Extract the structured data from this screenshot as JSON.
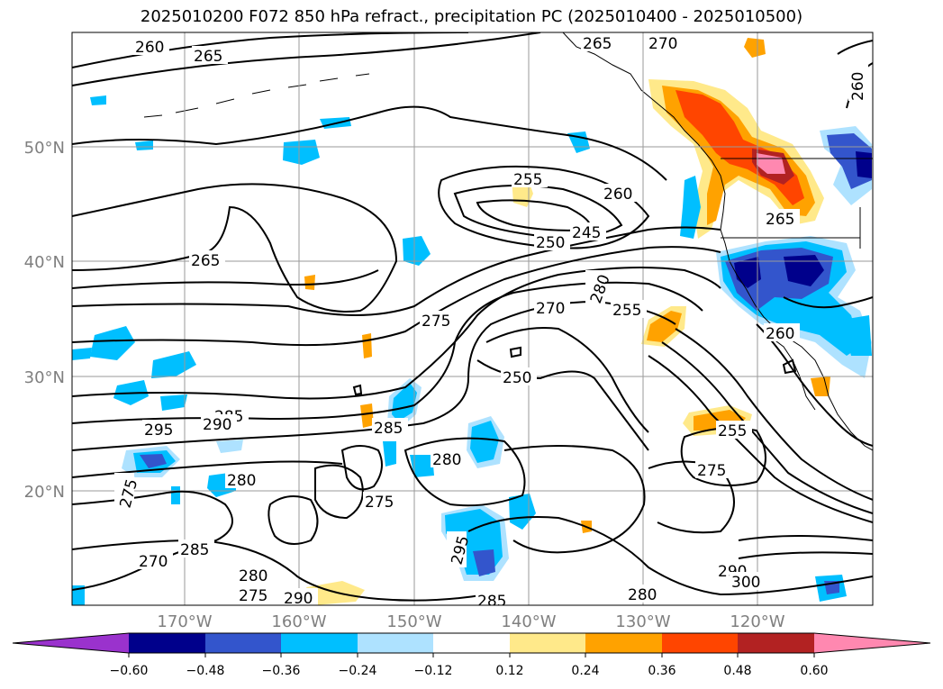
{
  "title": "2025010200 F072 850 hPa refract., precipitation PC (2025010400 - 2025010500)",
  "axes": {
    "lat_labels": [
      "50°N",
      "40°N",
      "30°N",
      "20°N"
    ],
    "lon_labels": [
      "170°W",
      "160°W",
      "150°W",
      "140°W",
      "130°W",
      "120°W"
    ]
  },
  "colorbar": {
    "ticks": [
      "−0.60",
      "−0.48",
      "−0.36",
      "−0.24",
      "−0.12",
      "0.12",
      "0.24",
      "0.36",
      "0.48",
      "0.60"
    ],
    "colors": [
      "#9a32cd",
      "#00008b",
      "#3355cc",
      "#00bfff",
      "#aee2ff",
      "#ffffff",
      "#ffe98a",
      "#ffa200",
      "#ff4500",
      "#b22222",
      "#ff88b0"
    ]
  },
  "contour_labels": [
    "260",
    "265",
    "265",
    "270",
    "260",
    "255",
    "260",
    "250",
    "245",
    "265",
    "265",
    "280",
    "270",
    "255",
    "275",
    "250",
    "285",
    "290",
    "295",
    "285",
    "280",
    "275",
    "280",
    "275",
    "275",
    "270",
    "285",
    "280",
    "290",
    "295",
    "285",
    "280",
    "290",
    "300",
    "275",
    "255",
    "260"
  ]
}
